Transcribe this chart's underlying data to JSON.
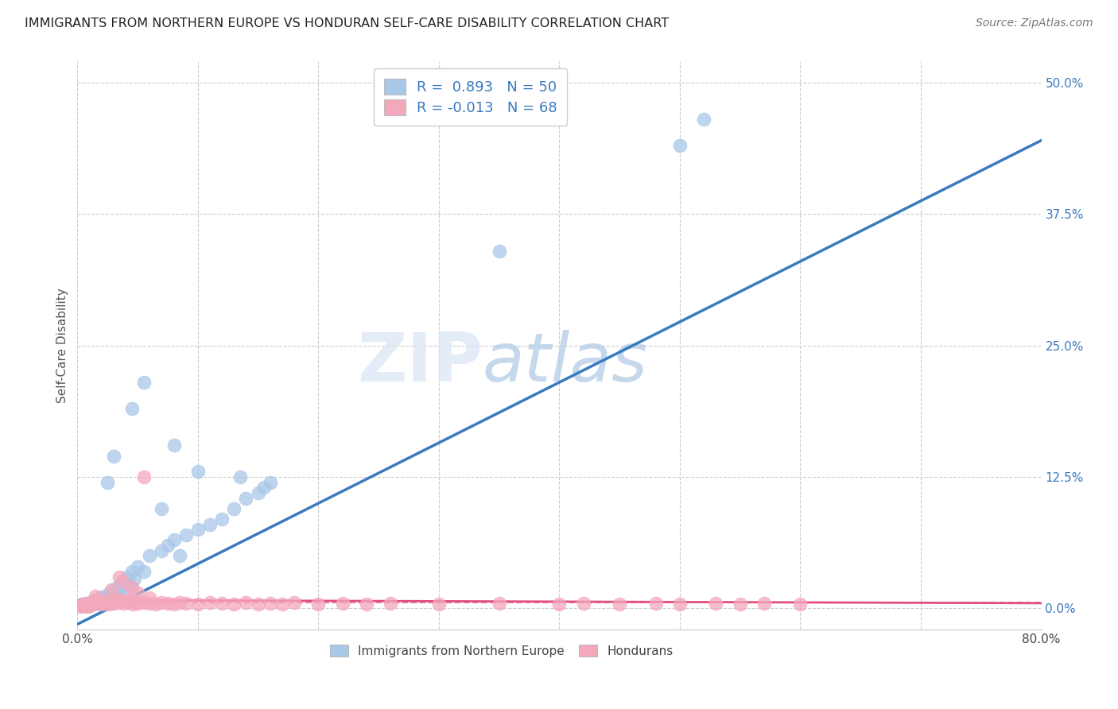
{
  "title": "IMMIGRANTS FROM NORTHERN EUROPE VS HONDURAN SELF-CARE DISABILITY CORRELATION CHART",
  "source": "Source: ZipAtlas.com",
  "ylabel": "Self-Care Disability",
  "ytick_values": [
    0.0,
    12.5,
    25.0,
    37.5,
    50.0
  ],
  "xlim": [
    0.0,
    80.0
  ],
  "ylim": [
    -2.0,
    52.0
  ],
  "legend_R1": "R =  0.893",
  "legend_N1": "N = 50",
  "legend_R2": "R = -0.013",
  "legend_N2": "N = 68",
  "blue_color": "#a8c8e8",
  "pink_color": "#f4a8bc",
  "blue_line_color": "#3a7abf",
  "pink_line_color": "#e05080",
  "blue_scatter": [
    [
      0.3,
      0.4
    ],
    [
      0.5,
      0.3
    ],
    [
      0.7,
      0.5
    ],
    [
      0.9,
      0.2
    ],
    [
      1.1,
      0.6
    ],
    [
      1.3,
      0.4
    ],
    [
      1.5,
      0.8
    ],
    [
      1.7,
      0.5
    ],
    [
      1.9,
      1.0
    ],
    [
      2.1,
      0.6
    ],
    [
      2.3,
      1.2
    ],
    [
      2.5,
      0.8
    ],
    [
      2.7,
      1.5
    ],
    [
      2.9,
      0.9
    ],
    [
      3.1,
      1.0
    ],
    [
      3.3,
      2.0
    ],
    [
      3.5,
      1.5
    ],
    [
      3.7,
      2.5
    ],
    [
      3.9,
      1.8
    ],
    [
      4.1,
      3.0
    ],
    [
      4.3,
      2.2
    ],
    [
      4.5,
      3.5
    ],
    [
      4.7,
      2.8
    ],
    [
      5.0,
      4.0
    ],
    [
      5.5,
      3.5
    ],
    [
      6.0,
      5.0
    ],
    [
      7.0,
      5.5
    ],
    [
      7.5,
      6.0
    ],
    [
      8.0,
      6.5
    ],
    [
      8.5,
      5.0
    ],
    [
      9.0,
      7.0
    ],
    [
      10.0,
      7.5
    ],
    [
      11.0,
      8.0
    ],
    [
      12.0,
      8.5
    ],
    [
      13.0,
      9.5
    ],
    [
      14.0,
      10.5
    ],
    [
      15.0,
      11.0
    ],
    [
      16.0,
      12.0
    ],
    [
      5.5,
      21.5
    ],
    [
      8.0,
      15.5
    ],
    [
      10.0,
      13.0
    ],
    [
      13.5,
      12.5
    ],
    [
      15.5,
      11.5
    ],
    [
      35.0,
      34.0
    ],
    [
      50.0,
      44.0
    ],
    [
      52.0,
      46.5
    ],
    [
      4.5,
      19.0
    ],
    [
      2.5,
      12.0
    ],
    [
      3.0,
      14.5
    ],
    [
      7.0,
      9.5
    ]
  ],
  "pink_scatter": [
    [
      0.2,
      0.2
    ],
    [
      0.4,
      0.3
    ],
    [
      0.5,
      0.4
    ],
    [
      0.7,
      0.2
    ],
    [
      0.9,
      0.5
    ],
    [
      1.0,
      0.3
    ],
    [
      1.2,
      0.6
    ],
    [
      1.3,
      0.4
    ],
    [
      1.5,
      0.7
    ],
    [
      1.6,
      0.5
    ],
    [
      1.8,
      0.8
    ],
    [
      2.0,
      0.4
    ],
    [
      2.1,
      0.6
    ],
    [
      2.3,
      0.5
    ],
    [
      2.5,
      0.7
    ],
    [
      2.7,
      0.4
    ],
    [
      2.9,
      0.6
    ],
    [
      3.0,
      0.5
    ],
    [
      3.2,
      0.8
    ],
    [
      3.4,
      0.6
    ],
    [
      3.6,
      0.9
    ],
    [
      3.8,
      0.5
    ],
    [
      4.0,
      0.7
    ],
    [
      4.2,
      0.6
    ],
    [
      4.4,
      0.8
    ],
    [
      4.6,
      0.4
    ],
    [
      4.8,
      0.7
    ],
    [
      5.0,
      0.5
    ],
    [
      5.5,
      0.6
    ],
    [
      6.0,
      0.5
    ],
    [
      6.5,
      0.4
    ],
    [
      7.0,
      0.6
    ],
    [
      7.5,
      0.5
    ],
    [
      8.0,
      0.4
    ],
    [
      8.5,
      0.6
    ],
    [
      9.0,
      0.5
    ],
    [
      10.0,
      0.4
    ],
    [
      11.0,
      0.6
    ],
    [
      12.0,
      0.5
    ],
    [
      13.0,
      0.4
    ],
    [
      14.0,
      0.6
    ],
    [
      15.0,
      0.4
    ],
    [
      16.0,
      0.5
    ],
    [
      17.0,
      0.4
    ],
    [
      18.0,
      0.6
    ],
    [
      20.0,
      0.4
    ],
    [
      22.0,
      0.5
    ],
    [
      24.0,
      0.4
    ],
    [
      5.5,
      12.5
    ],
    [
      26.0,
      0.5
    ],
    [
      30.0,
      0.4
    ],
    [
      35.0,
      0.5
    ],
    [
      40.0,
      0.4
    ],
    [
      42.0,
      0.5
    ],
    [
      45.0,
      0.4
    ],
    [
      48.0,
      0.5
    ],
    [
      50.0,
      0.4
    ],
    [
      53.0,
      0.5
    ],
    [
      55.0,
      0.4
    ],
    [
      57.0,
      0.5
    ],
    [
      60.0,
      0.4
    ],
    [
      3.5,
      3.0
    ],
    [
      4.5,
      2.0
    ],
    [
      5.0,
      1.5
    ],
    [
      2.8,
      1.8
    ],
    [
      3.8,
      2.5
    ],
    [
      6.0,
      1.0
    ],
    [
      1.5,
      1.2
    ]
  ],
  "blue_line_x": [
    0.0,
    80.0
  ],
  "blue_line_y_start": -1.5,
  "blue_line_y_end": 44.5,
  "pink_line_x": [
    0.0,
    80.0
  ],
  "pink_line_y_start": 0.8,
  "pink_line_y_end": 0.5,
  "watermark_zip": "ZIP",
  "watermark_atlas": "atlas",
  "background_color": "#ffffff",
  "grid_color": "#cccccc"
}
